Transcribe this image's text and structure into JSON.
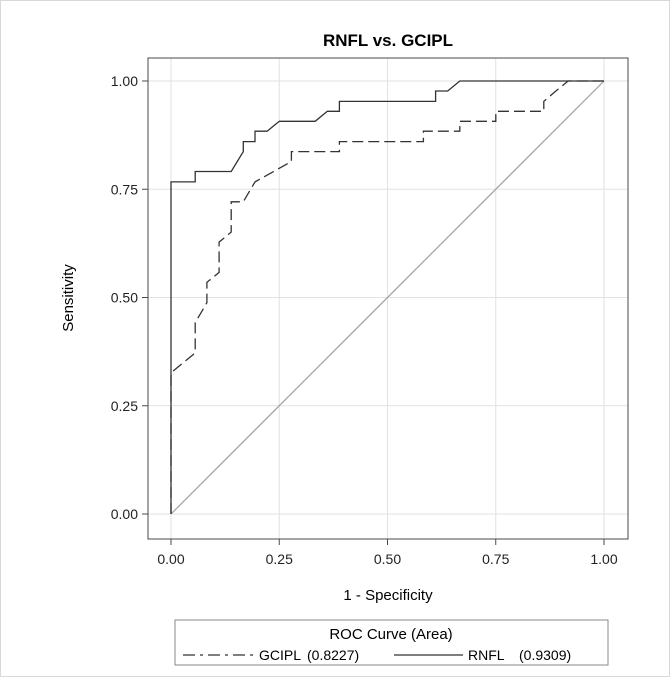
{
  "chart_data": {
    "type": "line",
    "title": "RNFL vs. GCIPL",
    "xlabel": "1 - Specificity",
    "ylabel": "Sensitivity",
    "xlim": [
      0,
      1
    ],
    "ylim": [
      0,
      1
    ],
    "x_ticks": [
      "0.00",
      "0.25",
      "0.50",
      "0.75",
      "1.00"
    ],
    "y_ticks": [
      "0.00",
      "0.25",
      "0.50",
      "0.75",
      "1.00"
    ],
    "grid": true,
    "legend_title": "ROC Curve (Area)",
    "legend_placement": "bottom",
    "reference_line": {
      "x": [
        0,
        1
      ],
      "y": [
        0,
        1
      ],
      "color": "#a0a0a0"
    },
    "series": [
      {
        "name": "GCIPL",
        "legend_label": "GCIPL",
        "area": "(0.8227)",
        "style": "dashed",
        "color": "#333333",
        "x": [
          0,
          0,
          0.056,
          0.056,
          0.083,
          0.083,
          0.111,
          0.111,
          0.139,
          0.139,
          0.167,
          0.194,
          0.194,
          0.278,
          0.278,
          0.389,
          0.389,
          0.583,
          0.583,
          0.667,
          0.667,
          0.75,
          0.75,
          0.861,
          0.861,
          0.889,
          0.889,
          0.917,
          0.917,
          1.0
        ],
        "y": [
          0,
          0.326,
          0.372,
          0.442,
          0.488,
          0.535,
          0.558,
          0.628,
          0.651,
          0.721,
          0.721,
          0.767,
          0.767,
          0.814,
          0.837,
          0.837,
          0.86,
          0.86,
          0.884,
          0.884,
          0.907,
          0.907,
          0.93,
          0.93,
          0.953,
          0.977,
          0.977,
          1.0,
          1.0,
          1.0
        ]
      },
      {
        "name": "RNFL",
        "legend_label": "RNFL",
        "area": "(0.9309)",
        "style": "solid",
        "color": "#333333",
        "x": [
          0,
          0,
          0.056,
          0.056,
          0.139,
          0.167,
          0.167,
          0.194,
          0.194,
          0.222,
          0.25,
          0.278,
          0.333,
          0.361,
          0.389,
          0.389,
          0.417,
          0.611,
          0.611,
          0.639,
          0.667,
          0.694,
          0.694,
          1.0
        ],
        "y": [
          0,
          0.767,
          0.767,
          0.791,
          0.791,
          0.837,
          0.86,
          0.86,
          0.884,
          0.884,
          0.907,
          0.907,
          0.907,
          0.93,
          0.93,
          0.953,
          0.953,
          0.953,
          0.977,
          0.977,
          1.0,
          1.0,
          1.0,
          1.0
        ]
      }
    ]
  }
}
